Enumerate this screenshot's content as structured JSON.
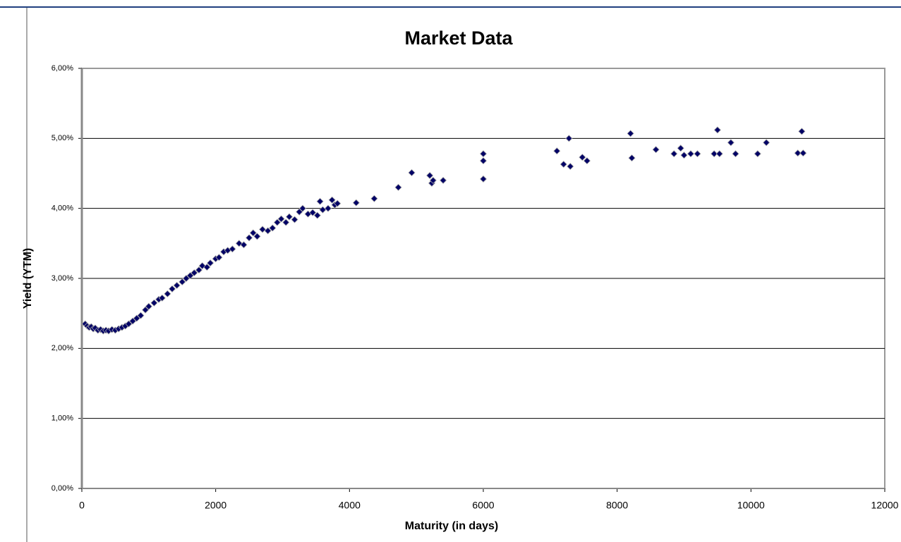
{
  "chart_data": {
    "type": "scatter",
    "title": "Market Data",
    "x_label": "Maturity (in days)",
    "y_label": "Yield (YTM)",
    "x": [
      50,
      80,
      110,
      140,
      170,
      200,
      240,
      280,
      320,
      360,
      400,
      450,
      500,
      550,
      600,
      650,
      700,
      760,
      820,
      880,
      950,
      1000,
      1080,
      1150,
      1200,
      1280,
      1350,
      1420,
      1500,
      1560,
      1620,
      1680,
      1750,
      1800,
      1870,
      1920,
      2000,
      2050,
      2120,
      2180,
      2250,
      2350,
      2420,
      2500,
      2560,
      2620,
      2700,
      2780,
      2850,
      2920,
      2980,
      3050,
      3100,
      3180,
      3250,
      3300,
      3380,
      3450,
      3520,
      3560,
      3600,
      3680,
      3740,
      3780,
      3820,
      4100,
      4370,
      4730,
      4930,
      5200,
      5230,
      5250,
      5400,
      6000,
      6000,
      6000,
      7100,
      7200,
      7280,
      7300,
      7480,
      7550,
      8200,
      8220,
      8580,
      8850,
      8950,
      9000,
      9100,
      9200,
      9450,
      9500,
      9530,
      9700,
      9770,
      10100,
      10230,
      10700,
      10760,
      10780
    ],
    "values": [
      2.35,
      2.32,
      2.3,
      2.31,
      2.28,
      2.29,
      2.26,
      2.27,
      2.25,
      2.26,
      2.25,
      2.27,
      2.26,
      2.28,
      2.3,
      2.32,
      2.35,
      2.39,
      2.43,
      2.47,
      2.55,
      2.6,
      2.65,
      2.7,
      2.72,
      2.78,
      2.85,
      2.9,
      2.95,
      3.0,
      3.04,
      3.08,
      3.12,
      3.18,
      3.16,
      3.22,
      3.28,
      3.3,
      3.38,
      3.4,
      3.42,
      3.5,
      3.48,
      3.58,
      3.65,
      3.6,
      3.7,
      3.68,
      3.72,
      3.8,
      3.85,
      3.8,
      3.88,
      3.84,
      3.95,
      4.0,
      3.92,
      3.94,
      3.9,
      4.1,
      3.98,
      4.0,
      4.12,
      4.05,
      4.07,
      4.08,
      4.14,
      4.3,
      4.51,
      4.47,
      4.36,
      4.4,
      4.4,
      4.78,
      4.68,
      4.42,
      4.82,
      4.63,
      5.0,
      4.6,
      4.73,
      4.68,
      5.07,
      4.72,
      4.84,
      4.78,
      4.86,
      4.76,
      4.78,
      4.78,
      4.78,
      5.12,
      4.78,
      4.94,
      4.78,
      4.78,
      4.94,
      4.79,
      5.1,
      4.79
    ],
    "color": "#000066",
    "xlim": [
      0,
      12000
    ],
    "xticks": [
      0,
      2000,
      4000,
      6000,
      8000,
      10000,
      12000
    ],
    "ylim": [
      0,
      6
    ],
    "yticks": [
      {
        "value": 0,
        "label": "0,00%"
      },
      {
        "value": 1,
        "label": "1,00%"
      },
      {
        "value": 2,
        "label": "2,00%"
      },
      {
        "value": 3,
        "label": "3,00%"
      },
      {
        "value": 4,
        "label": "4,00%"
      },
      {
        "value": 5,
        "label": "5,00%"
      },
      {
        "value": 6,
        "label": "6,00%"
      }
    ],
    "grid": true
  }
}
